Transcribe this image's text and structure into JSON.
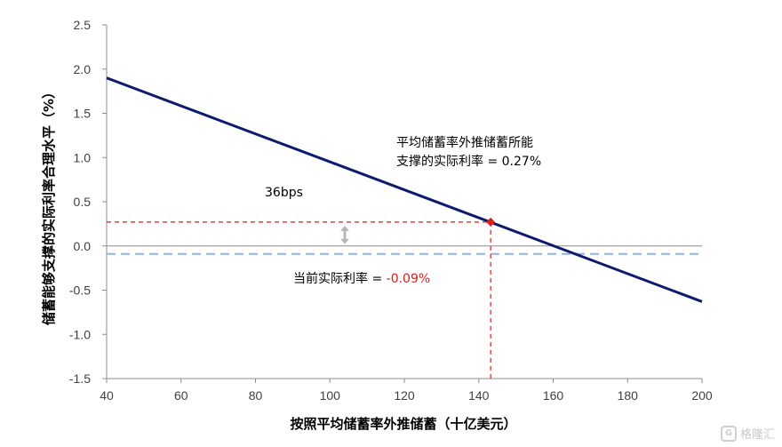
{
  "chart_data": {
    "type": "line",
    "xlabel": "按照平均储蓄率外推储蓄（十亿美元）",
    "ylabel": "储蓄能够支撑的实际利率合理水平（%）",
    "xlim": [
      40,
      200
    ],
    "ylim": [
      -1.5,
      2.5
    ],
    "x_ticks": [
      40,
      60,
      80,
      100,
      120,
      140,
      160,
      180,
      200
    ],
    "y_ticks": [
      2.5,
      2.0,
      1.5,
      1.0,
      0.5,
      0.0,
      -0.5,
      -1.0,
      -1.5
    ],
    "y_tick_labels": [
      "2.5",
      "2.0",
      "1.5",
      "1.0",
      "0.5",
      "0.0",
      "-0.5",
      "-1.0",
      "-1.5"
    ],
    "series": [
      {
        "x": [
          40,
          200
        ],
        "y": [
          1.9,
          -0.63
        ],
        "color": "#0d1a6e"
      }
    ],
    "reference_lines": {
      "zero_line_y": 0.0,
      "current_rate_y": -0.09,
      "current_rate_color": "#8fb4e3",
      "marker_x": 143.2,
      "marker_y": 0.27,
      "marker_color": "#e01b1b"
    },
    "annotations": {
      "avg_rate_line1": "平均储蓄率外推储蓄所能",
      "avg_rate_line2_prefix": "支撑的实际利率 = ",
      "avg_rate_line2_value": "0.27%",
      "bps": "36bps",
      "current_prefix": "当前实际利率 = ",
      "current_value": "-0.09%",
      "current_value_color": "#e01b1b"
    },
    "grid": false,
    "legend": "none"
  },
  "watermark": {
    "icon": "G",
    "text": "格隆汇"
  }
}
